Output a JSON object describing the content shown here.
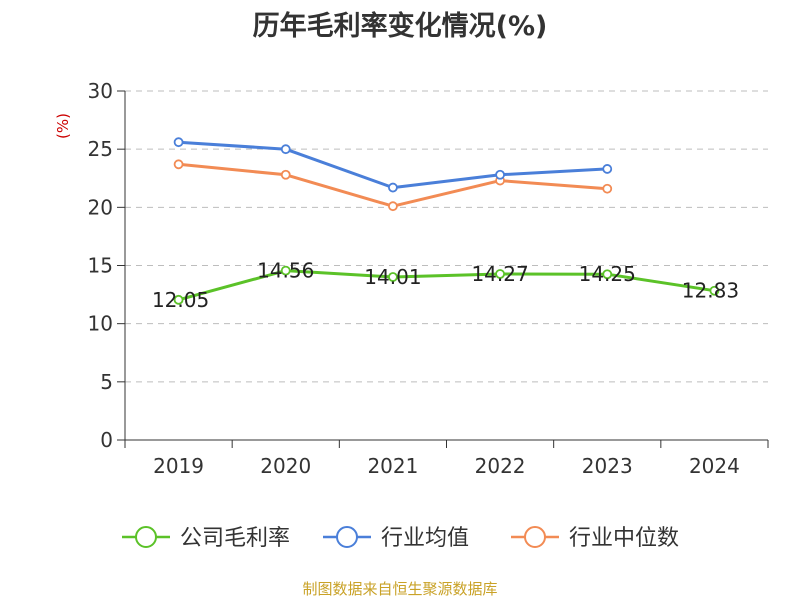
{
  "title": "历年毛利率变化情况(%)",
  "footer": "制图数据来自恒生聚源数据库",
  "chart_data": {
    "type": "line",
    "title": "历年毛利率变化情况(%)",
    "ylabel": "(%)",
    "ylim": [
      0,
      30
    ],
    "yticks": [
      0,
      5,
      10,
      15,
      20,
      25,
      30
    ],
    "categories": [
      "2019",
      "2020",
      "2021",
      "2022",
      "2023",
      "2024"
    ],
    "grid": true,
    "legend": "bottom",
    "series": [
      {
        "name": "公司毛利率",
        "color": "#5bc228",
        "values": [
          12.05,
          14.56,
          14.01,
          14.27,
          14.25,
          12.83
        ],
        "labels": [
          "12.05",
          "14.56",
          "14.01",
          "14.27",
          "14.25",
          "12.83"
        ]
      },
      {
        "name": "行业均值",
        "color": "#4a7fd9",
        "values": [
          25.6,
          25.0,
          21.7,
          22.8,
          23.3,
          null
        ]
      },
      {
        "name": "行业中位数",
        "color": "#f28b54",
        "values": [
          23.7,
          22.8,
          20.1,
          22.3,
          21.6,
          null
        ]
      }
    ]
  }
}
